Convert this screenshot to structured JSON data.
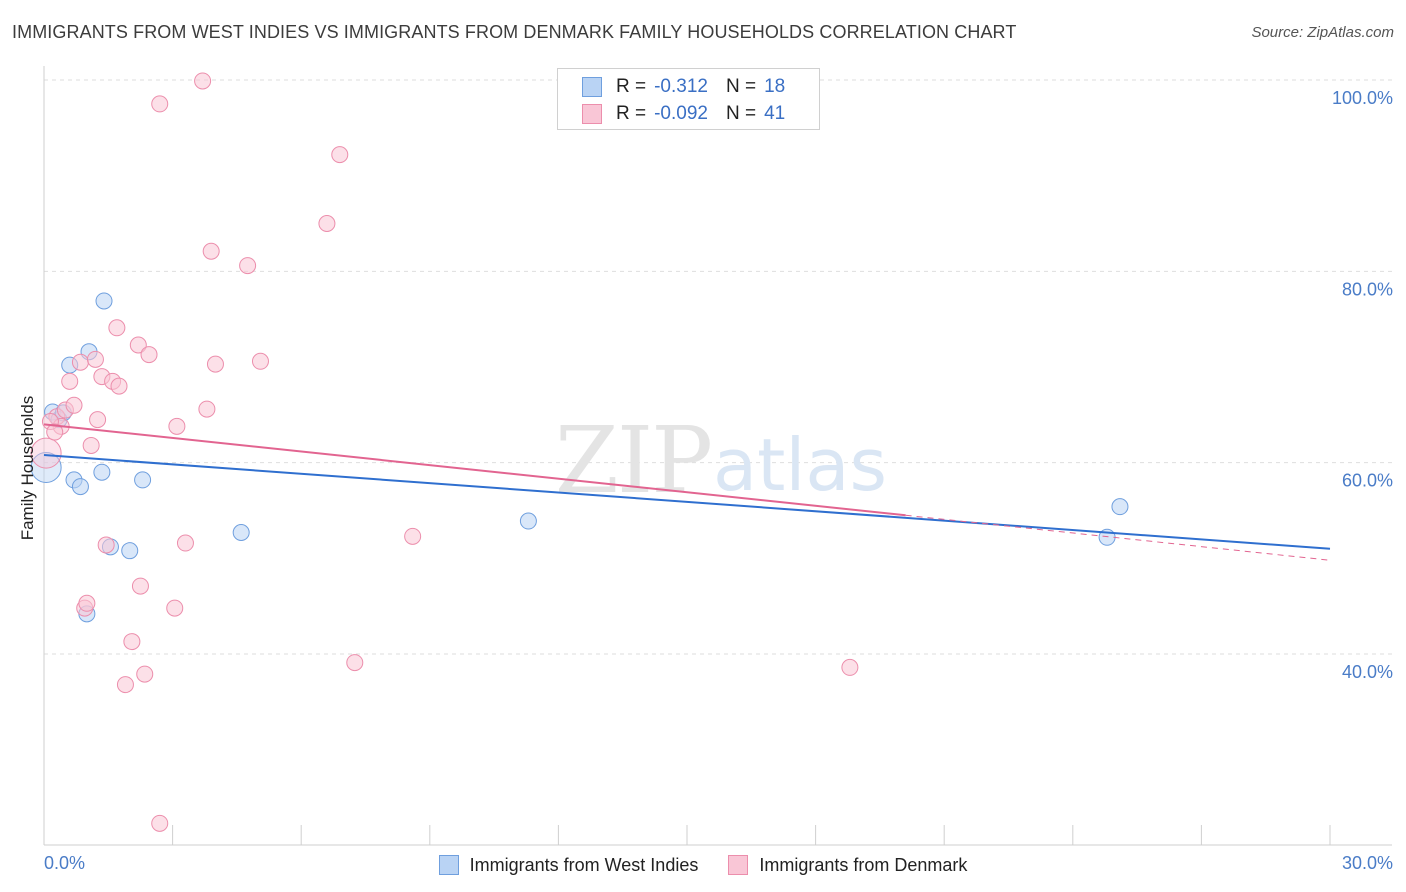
{
  "title": "IMMIGRANTS FROM WEST INDIES VS IMMIGRANTS FROM DENMARK FAMILY HOUSEHOLDS CORRELATION CHART",
  "source": "Source: ZipAtlas.com",
  "watermark": {
    "zip": "ZIP",
    "atlas": "atlas"
  },
  "legend": {
    "r_label": "R =",
    "n_label": "N =",
    "series": [
      {
        "name": "Immigrants from West Indies",
        "r": "-0.312",
        "n": "18",
        "fill": "#b9d3f4",
        "stroke": "#6f9fde"
      },
      {
        "name": "Immigrants from Denmark",
        "r": "-0.092",
        "n": "41",
        "fill": "#f9c6d6",
        "stroke": "#ec8eac"
      }
    ]
  },
  "chart_data": {
    "type": "scatter",
    "title": "IMMIGRANTS FROM WEST INDIES VS IMMIGRANTS FROM DENMARK FAMILY HOUSEHOLDS CORRELATION CHART",
    "xlabel": "",
    "ylabel": "Family Households",
    "xlim": [
      0,
      30
    ],
    "ylim": [
      20,
      100
    ],
    "x_tick_labels": [
      {
        "value": 0,
        "label": "0.0%"
      },
      {
        "value": 30,
        "label": "30.0%"
      }
    ],
    "y_tick_labels": [
      {
        "value": 100,
        "label": "100.0%"
      },
      {
        "value": 80,
        "label": "80.0%"
      },
      {
        "value": 60,
        "label": "60.0%"
      },
      {
        "value": 40,
        "label": "40.0%"
      }
    ],
    "series": [
      {
        "name": "Immigrants from West Indies",
        "color": "#6f9fde",
        "trend_color": "#2f6fcf",
        "trend": {
          "x0": 0,
          "y0": 60.8,
          "x1": 30,
          "y1": 51.0
        },
        "points": [
          {
            "x": 0.05,
            "y": 59.5,
            "big": true
          },
          {
            "x": 0.2,
            "y": 65.3
          },
          {
            "x": 0.35,
            "y": 64.5
          },
          {
            "x": 0.45,
            "y": 65.2
          },
          {
            "x": 0.6,
            "y": 70.2
          },
          {
            "x": 0.7,
            "y": 58.2
          },
          {
            "x": 0.85,
            "y": 57.5
          },
          {
            "x": 1.0,
            "y": 44.2
          },
          {
            "x": 1.05,
            "y": 71.6
          },
          {
            "x": 1.35,
            "y": 59.0
          },
          {
            "x": 1.4,
            "y": 76.9
          },
          {
            "x": 1.55,
            "y": 51.2
          },
          {
            "x": 2.0,
            "y": 50.8
          },
          {
            "x": 2.3,
            "y": 58.2
          },
          {
            "x": 4.6,
            "y": 52.7
          },
          {
            "x": 11.3,
            "y": 53.9
          },
          {
            "x": 24.8,
            "y": 52.2
          },
          {
            "x": 25.1,
            "y": 55.4
          }
        ]
      },
      {
        "name": "Immigrants from Denmark",
        "color": "#ec8eac",
        "trend_color": "#e26490",
        "trend": {
          "x0": 0,
          "y0": 64.0,
          "x1": 20.1,
          "y1": 54.5
        },
        "trend_extension": {
          "x0": 20.1,
          "y0": 54.5,
          "x1": 30,
          "y1": 49.8
        },
        "points": [
          {
            "x": 0.05,
            "y": 61.0,
            "big": true
          },
          {
            "x": 0.3,
            "y": 64.8
          },
          {
            "x": 0.4,
            "y": 63.8
          },
          {
            "x": 0.5,
            "y": 65.5
          },
          {
            "x": 0.6,
            "y": 68.5
          },
          {
            "x": 0.7,
            "y": 66.0
          },
          {
            "x": 0.85,
            "y": 70.5
          },
          {
            "x": 0.95,
            "y": 44.8
          },
          {
            "x": 1.0,
            "y": 45.3
          },
          {
            "x": 1.1,
            "y": 61.8
          },
          {
            "x": 1.2,
            "y": 70.8
          },
          {
            "x": 1.25,
            "y": 64.5
          },
          {
            "x": 1.35,
            "y": 69.0
          },
          {
            "x": 1.45,
            "y": 51.4
          },
          {
            "x": 1.6,
            "y": 68.5
          },
          {
            "x": 1.7,
            "y": 74.1
          },
          {
            "x": 1.75,
            "y": 68.0
          },
          {
            "x": 1.9,
            "y": 36.8
          },
          {
            "x": 2.05,
            "y": 41.3
          },
          {
            "x": 2.2,
            "y": 72.3
          },
          {
            "x": 2.25,
            "y": 47.1
          },
          {
            "x": 2.35,
            "y": 37.9
          },
          {
            "x": 2.45,
            "y": 71.3
          },
          {
            "x": 2.7,
            "y": 97.5
          },
          {
            "x": 2.7,
            "y": 22.3
          },
          {
            "x": 3.05,
            "y": 44.8
          },
          {
            "x": 3.1,
            "y": 63.8
          },
          {
            "x": 3.3,
            "y": 51.6
          },
          {
            "x": 3.7,
            "y": 99.9
          },
          {
            "x": 3.8,
            "y": 65.6
          },
          {
            "x": 3.9,
            "y": 82.1
          },
          {
            "x": 4.0,
            "y": 70.3
          },
          {
            "x": 4.75,
            "y": 80.6
          },
          {
            "x": 5.05,
            "y": 70.6
          },
          {
            "x": 6.6,
            "y": 85.0
          },
          {
            "x": 6.9,
            "y": 92.2
          },
          {
            "x": 7.25,
            "y": 39.1
          },
          {
            "x": 8.6,
            "y": 52.3
          },
          {
            "x": 18.8,
            "y": 38.6
          },
          {
            "x": 0.15,
            "y": 64.3
          },
          {
            "x": 0.25,
            "y": 63.2
          }
        ]
      }
    ]
  }
}
